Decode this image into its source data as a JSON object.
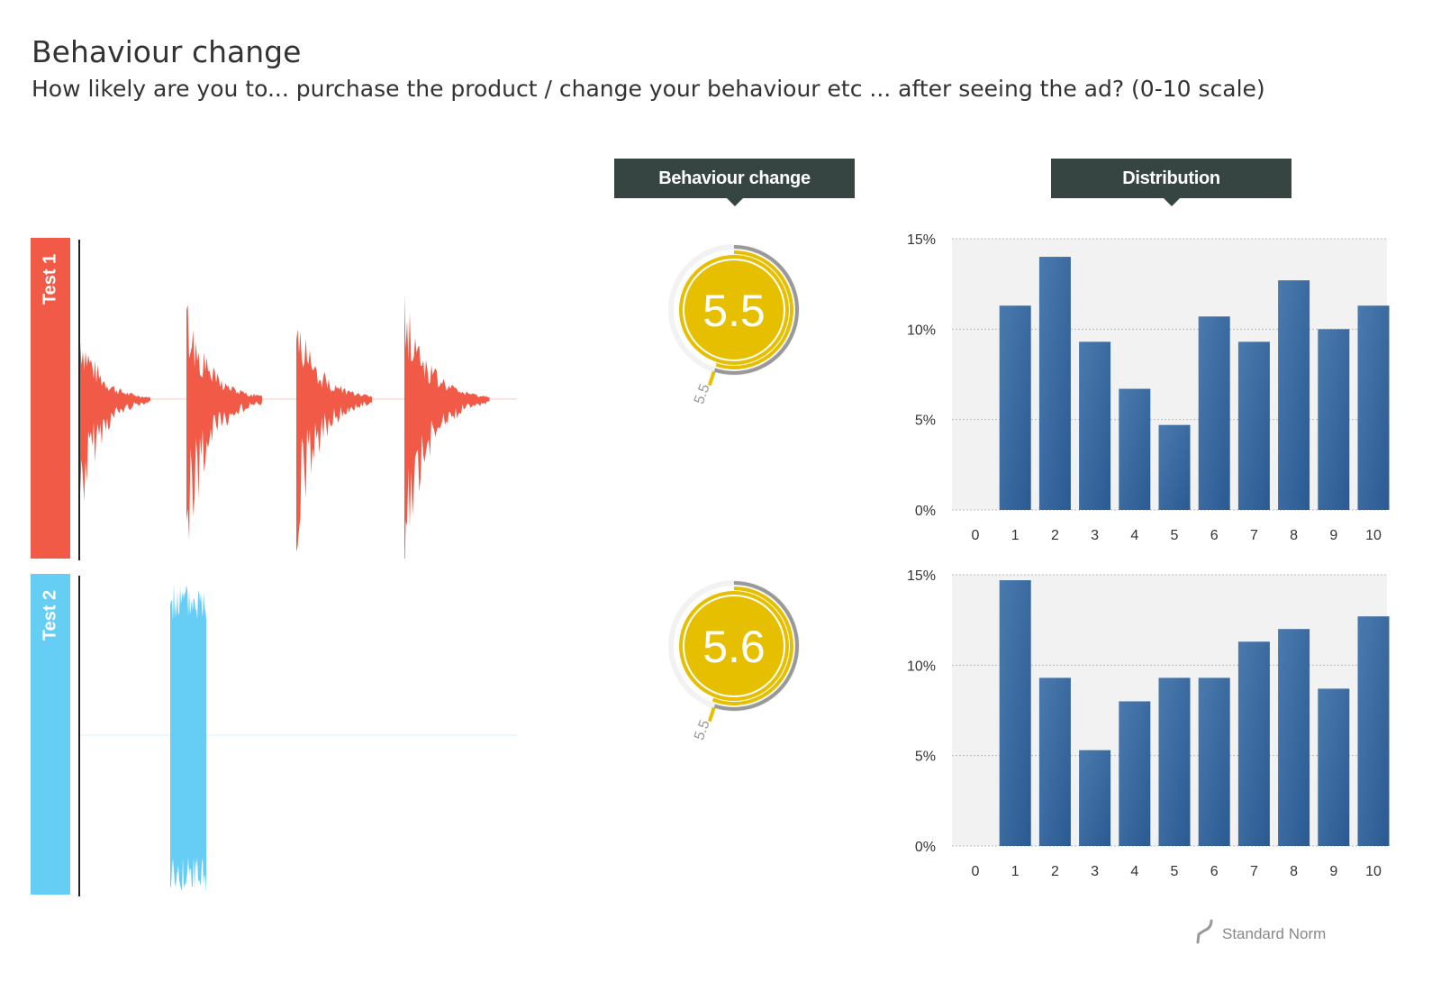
{
  "page": {
    "title": "Behaviour change",
    "subtitle": "How likely are you to... purchase the product / change your behaviour etc ... after seeing the ad? (0-10 scale)"
  },
  "headers": {
    "score": "Behaviour change",
    "distribution": "Distribution"
  },
  "legend": {
    "norm_label": "Standard Norm"
  },
  "colors": {
    "test1": "#f15a47",
    "test2": "#66cdf5",
    "gauge": "#e6c000",
    "bar": "#35659a",
    "header": "#364542",
    "norm": "#999999"
  },
  "tests": [
    {
      "label": "Test 1",
      "score": "5.5",
      "norm": "5.5"
    },
    {
      "label": "Test 2",
      "score": "5.6",
      "norm": "5.5"
    }
  ],
  "chart_data": [
    {
      "type": "bar",
      "title": "Test 1",
      "categories": [
        "0",
        "1",
        "2",
        "3",
        "4",
        "5",
        "6",
        "7",
        "8",
        "9",
        "10"
      ],
      "values": [
        0,
        11.3,
        14,
        9.3,
        6.7,
        4.7,
        10.7,
        9.3,
        12.7,
        10,
        11.3
      ],
      "ylim": [
        0,
        15
      ],
      "yticks": [
        "0%",
        "5%",
        "10%",
        "15%"
      ],
      "grid": true
    },
    {
      "type": "bar",
      "title": "Test 2",
      "categories": [
        "0",
        "1",
        "2",
        "3",
        "4",
        "5",
        "6",
        "7",
        "8",
        "9",
        "10"
      ],
      "values": [
        0,
        14.7,
        9.3,
        5.3,
        8,
        9.3,
        9.3,
        11.3,
        12,
        8.7,
        12.7
      ],
      "ylim": [
        0,
        15
      ],
      "yticks": [
        "0%",
        "5%",
        "10%",
        "15%"
      ],
      "grid": true
    }
  ]
}
